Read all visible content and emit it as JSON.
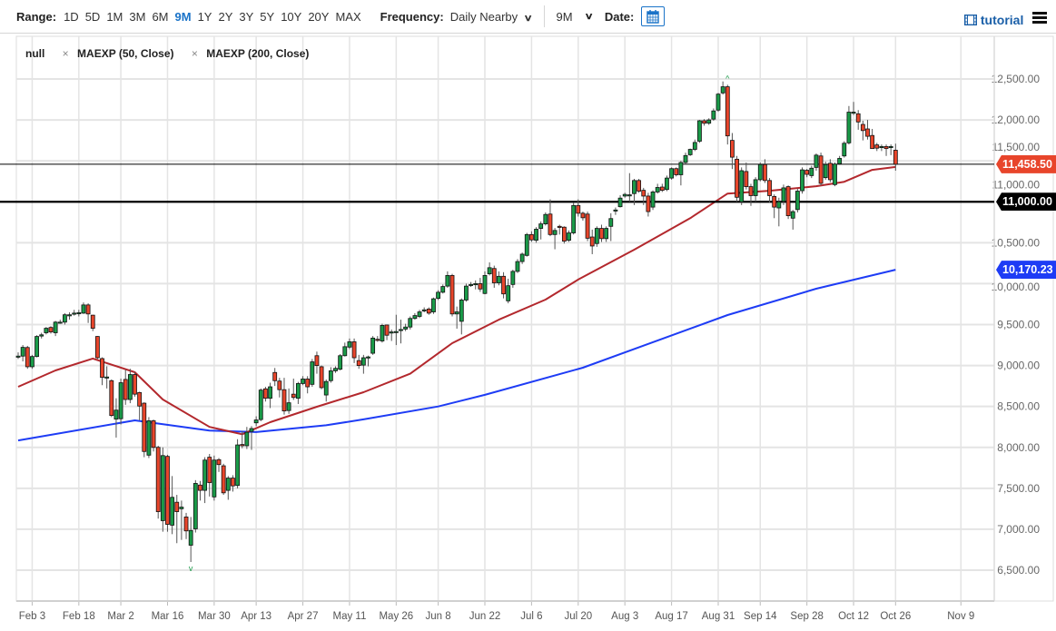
{
  "toolbar": {
    "range_label": "Range:",
    "ranges": [
      "1D",
      "5D",
      "1M",
      "3M",
      "6M",
      "9M",
      "1Y",
      "2Y",
      "3Y",
      "5Y",
      "10Y",
      "20Y",
      "MAX"
    ],
    "active_range": "9M",
    "frequency_label": "Frequency:",
    "frequency_value": "Daily Nearby",
    "period_value": "9M",
    "date_label": "Date:",
    "tutorial_label": "tutorial"
  },
  "legend": {
    "main": "null",
    "remove_icon": "×",
    "ma50": "MAEXP (50, Close)",
    "ma200": "MAEXP (200, Close)"
  },
  "price_tags": {
    "last": "11,458.50",
    "level": "11,000.00",
    "ma200": "10,170.23"
  },
  "colors": {
    "up": "#1a9a48",
    "down": "#e8452b",
    "ma50": "#b3282d",
    "ma200": "#1e3cf5",
    "accent": "#1a73c8"
  },
  "chart_data": {
    "type": "candlestick",
    "title": "",
    "ylim": [
      6500,
      12500
    ],
    "yticks": [
      6500,
      7000,
      7500,
      8000,
      8500,
      9000,
      9500,
      10000,
      10500,
      11000,
      11500,
      12000,
      12500
    ],
    "ytick_labels": [
      "6,500.00",
      "7,000.00",
      "7,500.00",
      "8,000.00",
      "8,500.00",
      "9,000.00",
      "9,500.00",
      "10,000.00",
      "10,500.00",
      "11,000.00",
      "11,500.00",
      "12,000.00",
      "12,500.00"
    ],
    "xlabels": [
      {
        "label": "Feb 3",
        "bar": 3
      },
      {
        "label": "Feb 18",
        "bar": 13
      },
      {
        "label": "Mar 2",
        "bar": 22
      },
      {
        "label": "Mar 16",
        "bar": 32
      },
      {
        "label": "Mar 30",
        "bar": 42
      },
      {
        "label": "Apr 13",
        "bar": 51
      },
      {
        "label": "Apr 27",
        "bar": 61
      },
      {
        "label": "May 11",
        "bar": 71
      },
      {
        "label": "May 26",
        "bar": 81
      },
      {
        "label": "Jun 8",
        "bar": 90
      },
      {
        "label": "Jun 22",
        "bar": 100
      },
      {
        "label": "Jul 6",
        "bar": 110
      },
      {
        "label": "Jul 20",
        "bar": 120
      },
      {
        "label": "Aug 3",
        "bar": 130
      },
      {
        "label": "Aug 17",
        "bar": 140
      },
      {
        "label": "Aug 31",
        "bar": 150
      },
      {
        "label": "Sep 14",
        "bar": 159
      },
      {
        "label": "Sep 28",
        "bar": 169
      },
      {
        "label": "Oct 12",
        "bar": 179
      },
      {
        "label": "Oct 26",
        "bar": 188
      },
      {
        "label": "Nov 9",
        "bar": 202
      }
    ],
    "horizontal_lines": [
      11458.5,
      11000
    ],
    "last_price": 11458.5,
    "ma200_last": 10170.23,
    "ohlc": [
      [
        9115,
        9160,
        9080,
        9115
      ],
      [
        9115,
        9250,
        9050,
        9222
      ],
      [
        9220,
        9240,
        8960,
        8985
      ],
      [
        8985,
        9130,
        8960,
        9110
      ],
      [
        9110,
        9370,
        9100,
        9355
      ],
      [
        9360,
        9400,
        9330,
        9375
      ],
      [
        9400,
        9470,
        9380,
        9455
      ],
      [
        9465,
        9480,
        9390,
        9410
      ],
      [
        9400,
        9545,
        9360,
        9530
      ],
      [
        9530,
        9560,
        9510,
        9530
      ],
      [
        9530,
        9640,
        9500,
        9620
      ],
      [
        9610,
        9650,
        9560,
        9620
      ],
      [
        9640,
        9680,
        9610,
        9640
      ],
      [
        9640,
        9680,
        9600,
        9645
      ],
      [
        9640,
        9770,
        9630,
        9740
      ],
      [
        9740,
        9760,
        9520,
        9630
      ],
      [
        9615,
        9620,
        9420,
        9455
      ],
      [
        9355,
        9360,
        9080,
        9095
      ],
      [
        9085,
        9100,
        8760,
        8855
      ],
      [
        8855,
        8990,
        8720,
        8860
      ],
      [
        8815,
        8830,
        8370,
        8390
      ],
      [
        8345,
        8600,
        8120,
        8455
      ],
      [
        8350,
        8840,
        8280,
        8790
      ],
      [
        8830,
        8950,
        8520,
        8585
      ],
      [
        8585,
        8960,
        8540,
        8890
      ],
      [
        8890,
        8920,
        8620,
        8650
      ],
      [
        8670,
        8680,
        8330,
        8505
      ],
      [
        8540,
        8550,
        7880,
        7950
      ],
      [
        7905,
        8370,
        7870,
        8325
      ],
      [
        8325,
        8340,
        7950,
        8000
      ],
      [
        8000,
        8020,
        7130,
        7215
      ],
      [
        7105,
        8000,
        6970,
        7900
      ],
      [
        7890,
        7910,
        6970,
        7060
      ],
      [
        7050,
        7650,
        6940,
        7390
      ],
      [
        7330,
        7420,
        6830,
        7215
      ],
      [
        7250,
        7350,
        6870,
        7270
      ],
      [
        7150,
        7200,
        6880,
        6980
      ],
      [
        6805,
        7150,
        6600,
        6985
      ],
      [
        7005,
        7600,
        6960,
        7560
      ],
      [
        7540,
        7590,
        7350,
        7475
      ],
      [
        7475,
        7880,
        7320,
        7845
      ],
      [
        7880,
        7920,
        7400,
        7570
      ],
      [
        7395,
        7900,
        7350,
        7845
      ],
      [
        7850,
        7870,
        7700,
        7790
      ],
      [
        7775,
        7800,
        7420,
        7445
      ],
      [
        7475,
        7650,
        7360,
        7625
      ],
      [
        7625,
        7660,
        7460,
        7530
      ],
      [
        7535,
        8100,
        7500,
        8030
      ],
      [
        8035,
        8200,
        7990,
        8020
      ],
      [
        8020,
        8250,
        7980,
        8185
      ],
      [
        8195,
        8260,
        7970,
        8230
      ],
      [
        8300,
        8380,
        8260,
        8335
      ],
      [
        8340,
        8720,
        8320,
        8700
      ],
      [
        8715,
        8740,
        8560,
        8600
      ],
      [
        8600,
        8790,
        8480,
        8740
      ],
      [
        8915,
        8970,
        8750,
        8815
      ],
      [
        8810,
        8850,
        8610,
        8705
      ],
      [
        8705,
        8850,
        8400,
        8445
      ],
      [
        8450,
        8720,
        8410,
        8545
      ],
      [
        8650,
        8840,
        8580,
        8610
      ],
      [
        8600,
        8800,
        8530,
        8780
      ],
      [
        8780,
        8870,
        8760,
        8835
      ],
      [
        8835,
        8870,
        8660,
        8740
      ],
      [
        8770,
        9080,
        8740,
        9045
      ],
      [
        9120,
        9170,
        8900,
        9000
      ],
      [
        8985,
        9000,
        8710,
        8730
      ],
      [
        8640,
        8830,
        8560,
        8805
      ],
      [
        8815,
        8980,
        8790,
        8935
      ],
      [
        8935,
        8990,
        8910,
        8965
      ],
      [
        8955,
        9140,
        8940,
        9120
      ],
      [
        9120,
        9280,
        9110,
        9230
      ],
      [
        9225,
        9330,
        9200,
        9290
      ],
      [
        9290,
        9330,
        9030,
        9095
      ],
      [
        9060,
        9130,
        8960,
        9000
      ],
      [
        9005,
        9130,
        8900,
        9095
      ],
      [
        9100,
        9120,
        8990,
        9105
      ],
      [
        9150,
        9360,
        9130,
        9335
      ],
      [
        9320,
        9360,
        9290,
        9315
      ],
      [
        9300,
        9510,
        9280,
        9490
      ],
      [
        9495,
        9500,
        9310,
        9370
      ],
      [
        9400,
        9440,
        9300,
        9410
      ],
      [
        9410,
        9620,
        9250,
        9415
      ],
      [
        9440,
        9560,
        9270,
        9440
      ],
      [
        9445,
        9510,
        9420,
        9470
      ],
      [
        9470,
        9600,
        9440,
        9575
      ],
      [
        9575,
        9640,
        9560,
        9610
      ],
      [
        9600,
        9680,
        9580,
        9655
      ],
      [
        9680,
        9710,
        9650,
        9680
      ],
      [
        9690,
        9710,
        9620,
        9640
      ],
      [
        9655,
        9830,
        9630,
        9815
      ],
      [
        9820,
        9920,
        9800,
        9895
      ],
      [
        9895,
        9990,
        9880,
        9965
      ],
      [
        9970,
        10150,
        9950,
        10100
      ],
      [
        10100,
        10120,
        9600,
        9630
      ],
      [
        9630,
        9720,
        9450,
        9655
      ],
      [
        9540,
        9820,
        9380,
        9800
      ],
      [
        9800,
        10000,
        9780,
        9970
      ],
      [
        9985,
        10020,
        9960,
        9990
      ],
      [
        10000,
        10040,
        9930,
        10000
      ],
      [
        10000,
        10070,
        9900,
        9935
      ],
      [
        9880,
        10150,
        9870,
        10100
      ],
      [
        10120,
        10260,
        10100,
        10195
      ],
      [
        10185,
        10220,
        9950,
        10010
      ],
      [
        10010,
        10150,
        9980,
        10090
      ],
      [
        10090,
        10140,
        9820,
        9875
      ],
      [
        9790,
        10060,
        9760,
        9975
      ],
      [
        9990,
        10170,
        9950,
        10150
      ],
      [
        10150,
        10300,
        10130,
        10270
      ],
      [
        10270,
        10380,
        10240,
        10360
      ],
      [
        10345,
        10620,
        10330,
        10600
      ],
      [
        10600,
        10640,
        10510,
        10535
      ],
      [
        10530,
        10690,
        10500,
        10665
      ],
      [
        10675,
        10760,
        10540,
        10730
      ],
      [
        10730,
        10870,
        10710,
        10845
      ],
      [
        10850,
        11030,
        10580,
        10600
      ],
      [
        10600,
        10680,
        10420,
        10650
      ],
      [
        10700,
        10720,
        10600,
        10690
      ],
      [
        10690,
        10700,
        10490,
        10520
      ],
      [
        10530,
        10650,
        10510,
        10620
      ],
      [
        10620,
        10990,
        10600,
        10955
      ],
      [
        10955,
        11030,
        10820,
        10860
      ],
      [
        10860,
        10880,
        10770,
        10805
      ],
      [
        10850,
        10880,
        10520,
        10555
      ],
      [
        10570,
        10660,
        10360,
        10460
      ],
      [
        10490,
        10700,
        10450,
        10675
      ],
      [
        10675,
        10720,
        10510,
        10550
      ],
      [
        10550,
        10700,
        10510,
        10675
      ],
      [
        10700,
        10860,
        10520,
        10795
      ],
      [
        10900,
        10930,
        10840,
        10900
      ],
      [
        10940,
        11080,
        10930,
        11045
      ],
      [
        11070,
        11110,
        11050,
        11090
      ],
      [
        11085,
        11350,
        11000,
        11085
      ],
      [
        11100,
        11280,
        10960,
        11260
      ],
      [
        11260,
        11280,
        11110,
        11130
      ],
      [
        11140,
        11170,
        10960,
        11070
      ],
      [
        11070,
        11110,
        10820,
        10880
      ],
      [
        10935,
        11140,
        10900,
        11120
      ],
      [
        11120,
        11220,
        11100,
        11175
      ],
      [
        11180,
        11220,
        11120,
        11140
      ],
      [
        11150,
        11320,
        11130,
        11290
      ],
      [
        11290,
        11420,
        11270,
        11405
      ],
      [
        11405,
        11420,
        11310,
        11330
      ],
      [
        11330,
        11500,
        11200,
        11480
      ],
      [
        11480,
        11600,
        11460,
        11565
      ],
      [
        11575,
        11650,
        11560,
        11640
      ],
      [
        11640,
        11760,
        11620,
        11725
      ],
      [
        11740,
        12000,
        11720,
        11990
      ],
      [
        11990,
        12010,
        11930,
        11960
      ],
      [
        11960,
        12020,
        11940,
        12000
      ],
      [
        12010,
        12140,
        11990,
        12110
      ],
      [
        12120,
        12330,
        12100,
        12315
      ],
      [
        12330,
        12470,
        12310,
        12405
      ],
      [
        12405,
        12430,
        11700,
        11805
      ],
      [
        11750,
        11840,
        11400,
        11545
      ],
      [
        11520,
        11560,
        11000,
        11055
      ],
      [
        11000,
        11420,
        10960,
        11380
      ],
      [
        11370,
        11480,
        11150,
        11185
      ],
      [
        11185,
        11220,
        10950,
        11075
      ],
      [
        11075,
        11300,
        11000,
        11270
      ],
      [
        11270,
        11480,
        11250,
        11455
      ],
      [
        11455,
        11520,
        11230,
        11260
      ],
      [
        11260,
        11290,
        10990,
        11075
      ],
      [
        11065,
        11090,
        10800,
        10935
      ],
      [
        10925,
        11050,
        10700,
        11000
      ],
      [
        11005,
        11210,
        10960,
        11170
      ],
      [
        11185,
        11200,
        10790,
        10830
      ],
      [
        10800,
        10900,
        10660,
        10880
      ],
      [
        10905,
        11160,
        10870,
        11130
      ],
      [
        11135,
        11420,
        11100,
        11390
      ],
      [
        11385,
        11400,
        11300,
        11335
      ],
      [
        11320,
        11440,
        11290,
        11410
      ],
      [
        11420,
        11590,
        11380,
        11570
      ],
      [
        11560,
        11600,
        11200,
        11225
      ],
      [
        11295,
        11490,
        11270,
        11455
      ],
      [
        11470,
        11520,
        11240,
        11270
      ],
      [
        11210,
        11480,
        11190,
        11460
      ],
      [
        11465,
        11560,
        11450,
        11530
      ],
      [
        11560,
        11740,
        11540,
        11715
      ],
      [
        11720,
        12170,
        11700,
        12095
      ],
      [
        12095,
        12220,
        12060,
        12095
      ],
      [
        12075,
        12120,
        11880,
        11975
      ],
      [
        11945,
        11990,
        11750,
        11870
      ],
      [
        11890,
        12000,
        11760,
        11800
      ],
      [
        11810,
        11890,
        11650,
        11650
      ],
      [
        11695,
        11720,
        11620,
        11655
      ],
      [
        11675,
        11700,
        11620,
        11675
      ],
      [
        11675,
        11700,
        11560,
        11650
      ],
      [
        11675,
        11700,
        11570,
        11675
      ],
      [
        11630,
        11710,
        11380,
        11458.5
      ]
    ],
    "ma50": [
      [
        0,
        8740
      ],
      [
        8,
        8940
      ],
      [
        16,
        9085
      ],
      [
        25,
        8918
      ],
      [
        31,
        8585
      ],
      [
        41,
        8250
      ],
      [
        48,
        8160
      ],
      [
        54,
        8308
      ],
      [
        64,
        8496
      ],
      [
        74,
        8674
      ],
      [
        84,
        8900
      ],
      [
        93,
        9273
      ],
      [
        103,
        9560
      ],
      [
        113,
        9805
      ],
      [
        120,
        10050
      ],
      [
        132,
        10415
      ],
      [
        144,
        10800
      ],
      [
        152,
        11100
      ],
      [
        161,
        11135
      ],
      [
        171,
        11190
      ],
      [
        177,
        11245
      ],
      [
        183,
        11390
      ],
      [
        188,
        11425
      ]
    ],
    "ma200": [
      [
        0,
        8085
      ],
      [
        25,
        8330
      ],
      [
        41,
        8205
      ],
      [
        51,
        8187
      ],
      [
        66,
        8270
      ],
      [
        74,
        8342
      ],
      [
        90,
        8500
      ],
      [
        100,
        8642
      ],
      [
        121,
        8973
      ],
      [
        152,
        9617
      ],
      [
        171,
        9938
      ],
      [
        188,
        10170
      ]
    ],
    "markers": [
      {
        "bar": 152,
        "type": "high"
      },
      {
        "bar": 37,
        "type": "low"
      }
    ]
  }
}
